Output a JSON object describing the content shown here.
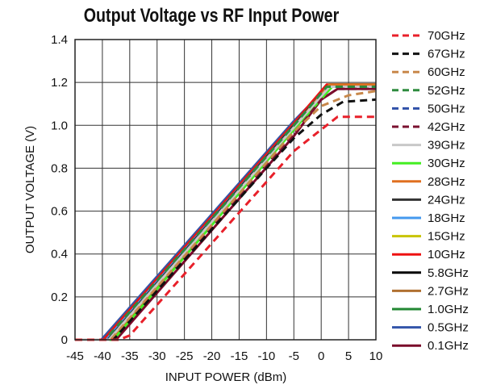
{
  "chart_data": {
    "type": "line",
    "title": "Output Voltage vs RF Input Power",
    "xlabel": "INPUT POWER (dBm)",
    "ylabel": "OUTPUT VOLTAGE (V)",
    "xlim": [
      -45,
      10
    ],
    "ylim": [
      0,
      1.4
    ],
    "xticks": [
      -45,
      -40,
      -35,
      -30,
      -25,
      -20,
      -15,
      -10,
      -5,
      0,
      5,
      10
    ],
    "yticks": [
      "0",
      "0.2",
      "0.4",
      "0.6",
      "0.8",
      "1.0",
      "1.2",
      "1.4"
    ],
    "grid": true,
    "legend_position": "right",
    "series": [
      {
        "name": "70GHz",
        "color": "#e8202a",
        "dash": true,
        "points": [
          [
            -45,
            0
          ],
          [
            -37,
            0
          ],
          [
            -35,
            0.02
          ],
          [
            -5,
            0.88
          ],
          [
            0,
            0.98
          ],
          [
            3,
            1.04
          ],
          [
            10,
            1.04
          ]
        ]
      },
      {
        "name": "67GHz",
        "color": "#111111",
        "dash": true,
        "points": [
          [
            -45,
            0
          ],
          [
            -38,
            0
          ],
          [
            -10,
            0.8
          ],
          [
            -5,
            0.94
          ],
          [
            0,
            1.05
          ],
          [
            4,
            1.11
          ],
          [
            10,
            1.12
          ]
        ]
      },
      {
        "name": "60GHz",
        "color": "#c8884a",
        "dash": true,
        "points": [
          [
            -45,
            0
          ],
          [
            -38.5,
            0
          ],
          [
            -5,
            0.97
          ],
          [
            0,
            1.09
          ],
          [
            5,
            1.14
          ],
          [
            10,
            1.16
          ]
        ]
      },
      {
        "name": "52GHz",
        "color": "#2e8b3e",
        "dash": true,
        "points": [
          [
            -45,
            0
          ],
          [
            -39.5,
            0
          ],
          [
            -5,
            1.0
          ],
          [
            1,
            1.18
          ],
          [
            10,
            1.18
          ]
        ]
      },
      {
        "name": "50GHz",
        "color": "#3050a8",
        "dash": true,
        "points": [
          [
            -45,
            0
          ],
          [
            -39.5,
            0
          ],
          [
            -5,
            1.0
          ],
          [
            1,
            1.18
          ],
          [
            10,
            1.18
          ]
        ]
      },
      {
        "name": "42GHz",
        "color": "#7a1030",
        "dash": true,
        "points": [
          [
            -45,
            0
          ],
          [
            -38,
            0
          ],
          [
            -5,
            0.96
          ],
          [
            0,
            1.12
          ],
          [
            3,
            1.17
          ],
          [
            10,
            1.17
          ]
        ]
      },
      {
        "name": "39GHz",
        "color": "#c8c8c8",
        "dash": false,
        "points": [
          [
            -45,
            0
          ],
          [
            -38.8,
            0
          ],
          [
            -5,
            0.99
          ],
          [
            1.5,
            1.18
          ],
          [
            10,
            1.18
          ]
        ]
      },
      {
        "name": "30GHz",
        "color": "#44ee22",
        "dash": false,
        "points": [
          [
            -45,
            0
          ],
          [
            -38,
            0
          ],
          [
            -5,
            0.98
          ],
          [
            2,
            1.18
          ],
          [
            10,
            1.18
          ]
        ]
      },
      {
        "name": "28GHz",
        "color": "#e07020",
        "dash": false,
        "points": [
          [
            -45,
            0
          ],
          [
            -38.5,
            0
          ],
          [
            -5,
            0.99
          ],
          [
            1.5,
            1.19
          ],
          [
            10,
            1.19
          ]
        ]
      },
      {
        "name": "24GHz",
        "color": "#333333",
        "dash": false,
        "points": [
          [
            -45,
            0
          ],
          [
            -39,
            0
          ],
          [
            -5,
            1.0
          ],
          [
            1.5,
            1.19
          ],
          [
            10,
            1.19
          ]
        ]
      },
      {
        "name": "18GHz",
        "color": "#4499ee",
        "dash": false,
        "points": [
          [
            -45,
            0
          ],
          [
            -39.3,
            0
          ],
          [
            -5,
            1.0
          ],
          [
            1.5,
            1.19
          ],
          [
            10,
            1.19
          ]
        ]
      },
      {
        "name": "15GHz",
        "color": "#c8c400",
        "dash": false,
        "points": [
          [
            -45,
            0
          ],
          [
            -39,
            0
          ],
          [
            -5,
            1.0
          ],
          [
            1.5,
            1.19
          ],
          [
            10,
            1.19
          ]
        ]
      },
      {
        "name": "10GHz",
        "color": "#ee1111",
        "dash": false,
        "points": [
          [
            -45,
            0
          ],
          [
            -39.8,
            0
          ],
          [
            -5,
            1.01
          ],
          [
            1,
            1.19
          ],
          [
            10,
            1.19
          ]
        ]
      },
      {
        "name": "5.8GHz",
        "color": "#000000",
        "dash": false,
        "points": [
          [
            -45,
            0
          ],
          [
            -39.5,
            0
          ],
          [
            -5,
            1.0
          ],
          [
            1.5,
            1.19
          ],
          [
            10,
            1.19
          ]
        ]
      },
      {
        "name": "2.7GHz",
        "color": "#b07030",
        "dash": false,
        "points": [
          [
            -45,
            0
          ],
          [
            -39.5,
            0
          ],
          [
            -5,
            1.0
          ],
          [
            1.5,
            1.19
          ],
          [
            10,
            1.19
          ]
        ]
      },
      {
        "name": "1.0GHz",
        "color": "#228833",
        "dash": false,
        "points": [
          [
            -45,
            0
          ],
          [
            -39.8,
            0
          ],
          [
            -5,
            1.01
          ],
          [
            1.5,
            1.19
          ],
          [
            10,
            1.19
          ]
        ]
      },
      {
        "name": "0.5GHz",
        "color": "#3355aa",
        "dash": false,
        "points": [
          [
            -45,
            0
          ],
          [
            -40.2,
            0
          ],
          [
            -5,
            1.02
          ],
          [
            1.5,
            1.19
          ],
          [
            10,
            1.19
          ]
        ]
      },
      {
        "name": "0.1GHz",
        "color": "#7a0a2a",
        "dash": false,
        "points": [
          [
            -45,
            0
          ],
          [
            -37.5,
            0
          ],
          [
            -5,
            0.95
          ],
          [
            0,
            1.12
          ],
          [
            3,
            1.17
          ],
          [
            10,
            1.17
          ]
        ]
      }
    ]
  }
}
